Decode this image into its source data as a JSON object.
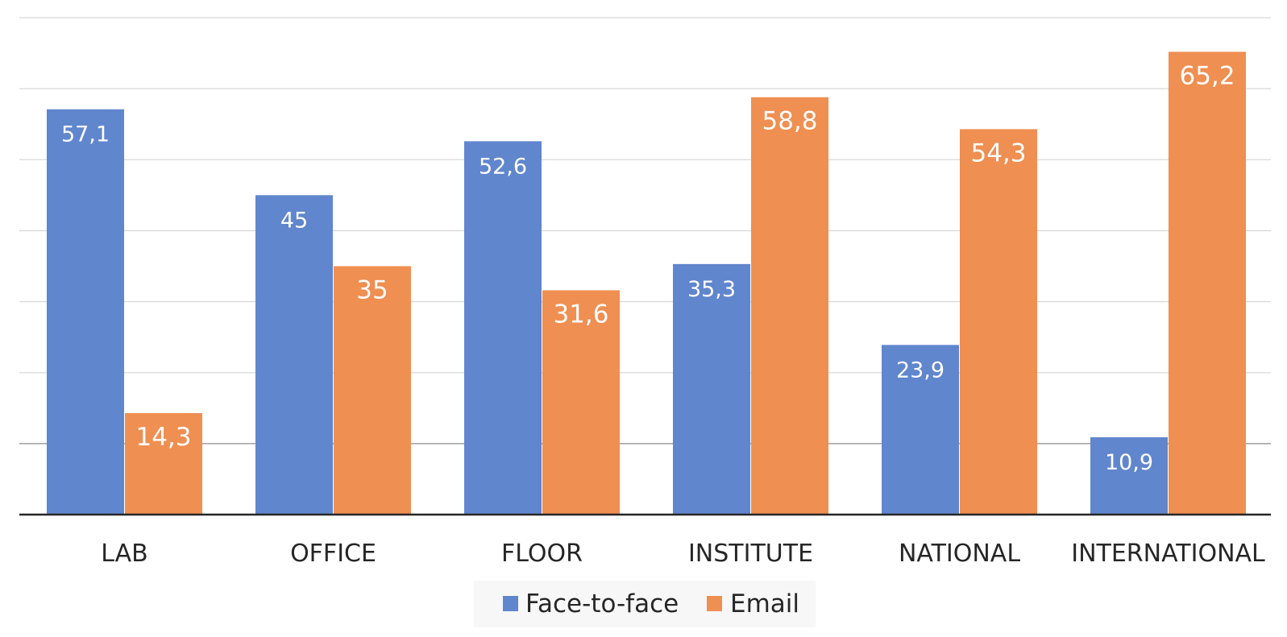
{
  "chart_data": {
    "type": "bar",
    "categories": [
      "LAB",
      "OFFICE",
      "FLOOR",
      "INSTITUTE",
      "NATIONAL",
      "INTERNATIONAL"
    ],
    "series": [
      {
        "name": "Face-to-face",
        "color": "#6086cd",
        "values": [
          57.1,
          45,
          52.6,
          35.3,
          23.9,
          10.9
        ],
        "labels": [
          "57,1",
          "45",
          "52,6",
          "35,3",
          "23,9",
          "10,9"
        ]
      },
      {
        "name": "Email",
        "color": "#ef8f51",
        "values": [
          14.3,
          35,
          31.6,
          58.8,
          54.3,
          65.2
        ],
        "labels": [
          "14,3",
          "35",
          "31,6",
          "58,8",
          "54,3",
          "65,2"
        ]
      }
    ],
    "ylim": [
      0,
      70
    ],
    "grid": true,
    "legend_position": "bottom"
  }
}
